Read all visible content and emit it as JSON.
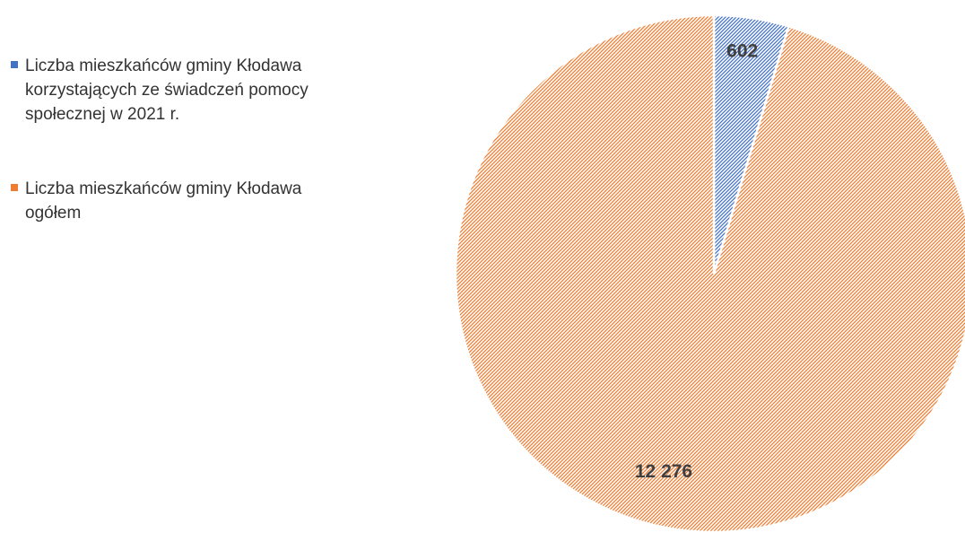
{
  "chart_data": {
    "type": "pie",
    "title": "",
    "legend_position": "left",
    "slices": [
      {
        "name": "Liczba mieszkańców gminy Kłodawa korzystających ze świadczeń pomocy społecznej w 2021 r.",
        "value": 602,
        "label": "602",
        "color": "#4472c4"
      },
      {
        "name": "Liczba mieszkańców gminy Kłodawa ogółem",
        "value": 12276,
        "label": "12 276",
        "color": "#ed7d31"
      }
    ]
  }
}
